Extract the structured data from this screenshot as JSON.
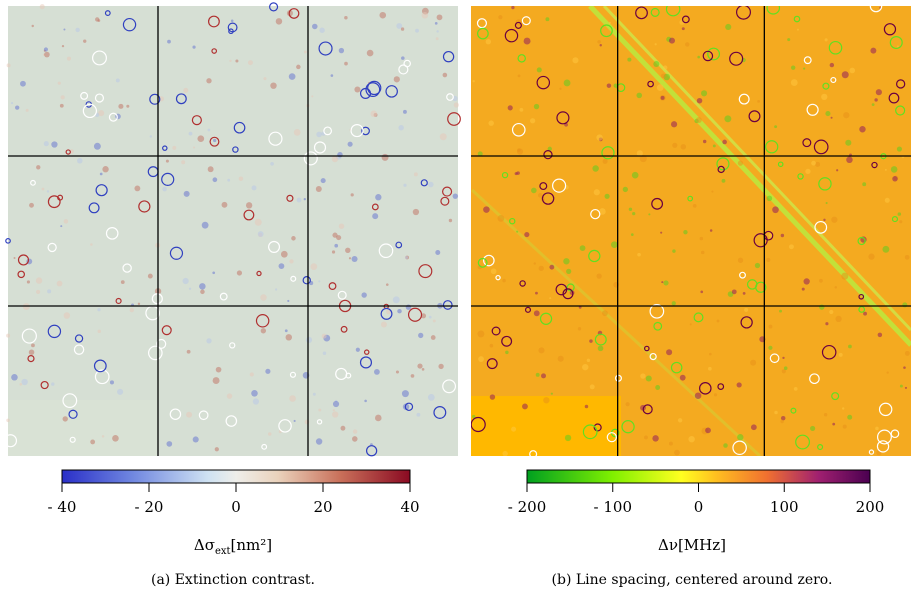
{
  "panels": [
    {
      "colorbar": {
        "limits": [
          -40,
          40
        ],
        "ticks": [
          {
            "value": -40,
            "label": "- 40"
          },
          {
            "value": -20,
            "label": "- 20"
          },
          0,
          20,
          40
        ],
        "label": {
          "symbol": "Δσ",
          "subscript": "ext",
          "unit": "[nm²]"
        }
      },
      "caption": "(a) Extinction contrast."
    },
    {
      "colorbar": {
        "limits": [
          -200,
          200
        ],
        "ticks": [
          {
            "value": -200,
            "label": "- 200"
          },
          {
            "value": -100,
            "label": "- 100"
          },
          0,
          100,
          200
        ],
        "label": {
          "symbol": "Δν",
          "unit": "[MHz]"
        }
      },
      "caption": "(b) Line spacing, centered around zero."
    }
  ]
}
